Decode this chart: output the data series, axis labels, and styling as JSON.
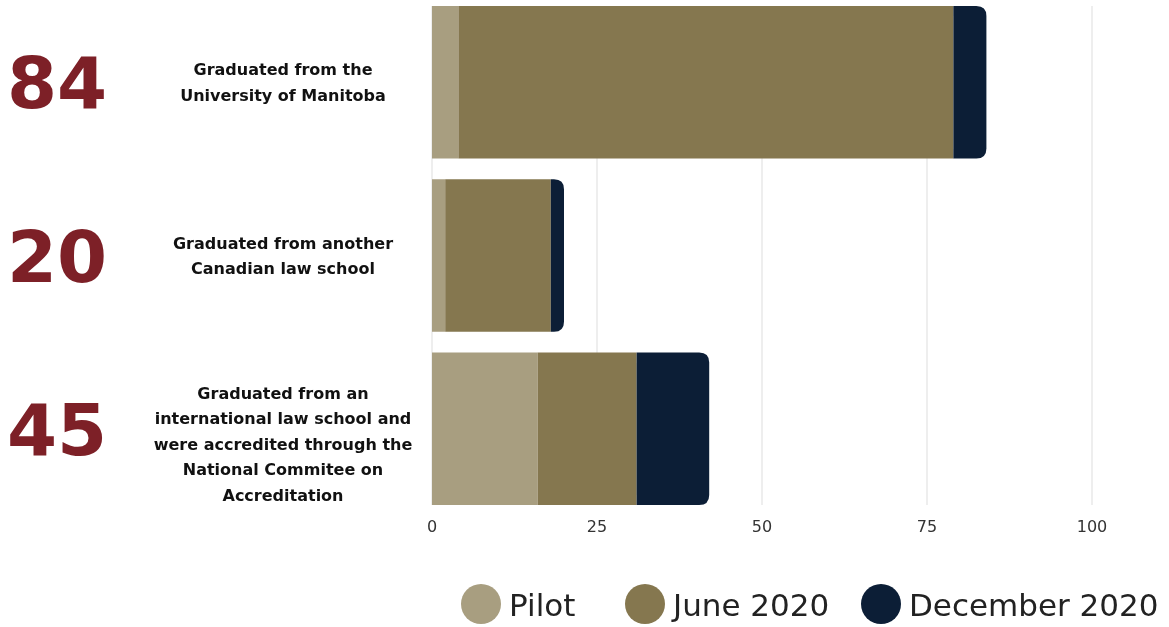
{
  "chart_data": {
    "type": "bar",
    "orientation": "horizontal",
    "stacked": true,
    "categories": [
      "Graduated from the\nUniversity of Manitoba",
      "Graduated from another\nCanadian law school",
      "Graduated from an\ninternational law school and\nwere accredited through the\nNational Commitee on\nAccreditation"
    ],
    "series": [
      {
        "name": "Pilot",
        "color": "#a89e80",
        "values": [
          4,
          2,
          16
        ]
      },
      {
        "name": "June 2020",
        "color": "#85774f",
        "values": [
          75,
          16,
          15
        ]
      },
      {
        "name": "December 2020",
        "color": "#0c1e36",
        "values": [
          5,
          2,
          11
        ]
      }
    ],
    "annotations": [
      "84",
      "20",
      "45"
    ],
    "xlim": [
      0,
      100
    ],
    "xticks": [
      0,
      25,
      50,
      75,
      100
    ],
    "grid": "x",
    "legend": "bottom"
  }
}
